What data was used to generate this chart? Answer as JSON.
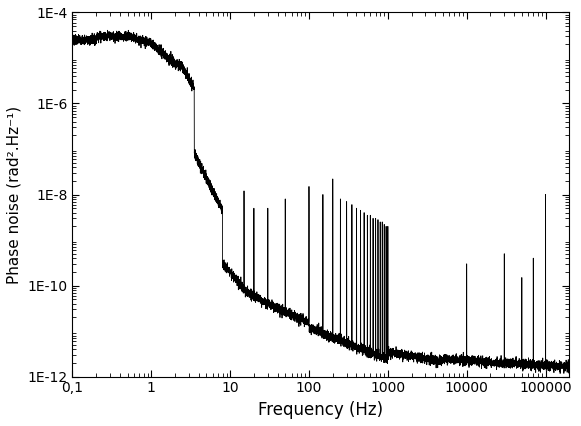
{
  "title": "",
  "xlabel": "Frequency (Hz)",
  "ylabel": "Phase noise (rad².Hz⁻¹)",
  "xmin": 0.1,
  "xmax": 200000,
  "ymin": 1e-12,
  "ymax": 0.0001,
  "line_color": "#000000",
  "background_color": "#ffffff",
  "x_tick_labels": [
    "0,1",
    "1",
    "10",
    "100",
    "1000",
    "10000",
    "100000"
  ],
  "x_tick_vals": [
    0.1,
    1,
    10,
    100,
    1000,
    10000,
    100000
  ],
  "y_tick_labels": [
    "1E-12",
    "1E-10",
    "1E-8",
    "1E-6",
    "1E-4"
  ],
  "y_tick_vals": [
    1e-12,
    1e-10,
    1e-08,
    1e-06,
    0.0001
  ],
  "figsize": [
    5.81,
    4.26
  ],
  "dpi": 100
}
